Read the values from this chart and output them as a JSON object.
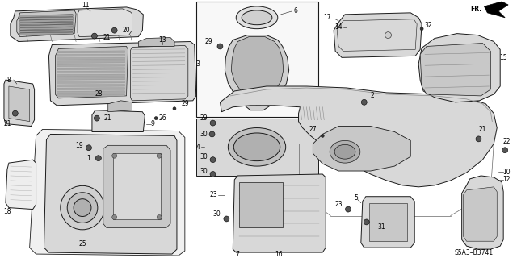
{
  "fig_width": 6.4,
  "fig_height": 3.2,
  "dpi": 100,
  "background_color": "#ffffff",
  "line_color": "#1a1a1a",
  "gray_fill": "#d8d8d8",
  "mid_gray": "#b8b8b8",
  "dark_gray": "#909090",
  "footer_code": "S5A3–B3741",
  "fr_text": "FR.",
  "label_fs": 5.5,
  "screw_r": 0.004
}
